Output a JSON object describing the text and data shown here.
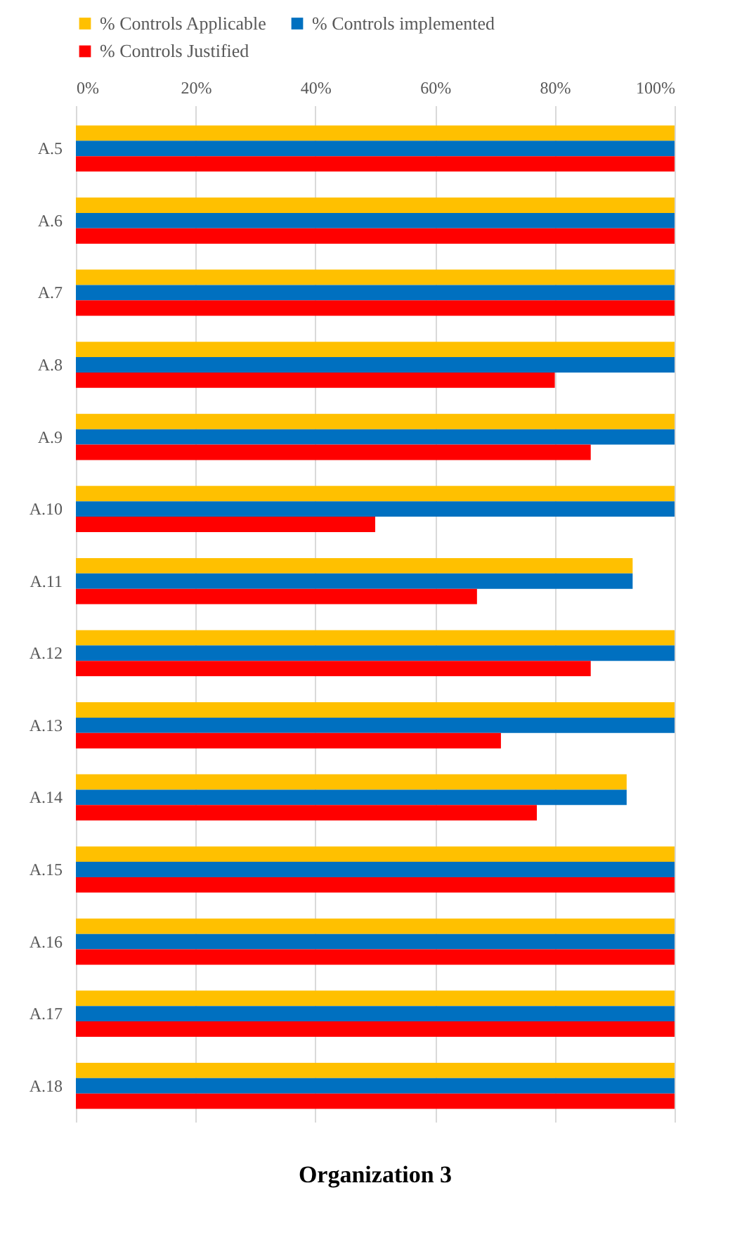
{
  "chart_data": {
    "type": "bar",
    "orientation": "horizontal",
    "title": "Organization 3",
    "categories": [
      "A.5",
      "A.6",
      "A.7",
      "A.8",
      "A.9",
      "A.10",
      "A.11",
      "A.12",
      "A.13",
      "A.14",
      "A.15",
      "A.16",
      "A.17",
      "A.18"
    ],
    "series": [
      {
        "name": "% Controls Applicable",
        "color": "#ffc000",
        "values": [
          100,
          100,
          100,
          100,
          100,
          100,
          93,
          100,
          100,
          92,
          100,
          100,
          100,
          100
        ]
      },
      {
        "name": "% Controls implemented",
        "color": "#0070c0",
        "values": [
          100,
          100,
          100,
          100,
          100,
          100,
          93,
          100,
          100,
          92,
          100,
          100,
          100,
          100
        ]
      },
      {
        "name": "% Controls Justified",
        "color": "#ff0000",
        "values": [
          100,
          100,
          100,
          80,
          86,
          50,
          67,
          86,
          71,
          77,
          100,
          100,
          100,
          100
        ]
      }
    ],
    "xlim": [
      0,
      100
    ],
    "xticks": [
      {
        "value": 0,
        "label": "0%"
      },
      {
        "value": 20,
        "label": "20%"
      },
      {
        "value": 40,
        "label": "40%"
      },
      {
        "value": 60,
        "label": "60%"
      },
      {
        "value": 80,
        "label": "80%"
      },
      {
        "value": 100,
        "label": "100%"
      }
    ],
    "grid": "x",
    "legend": "top"
  }
}
